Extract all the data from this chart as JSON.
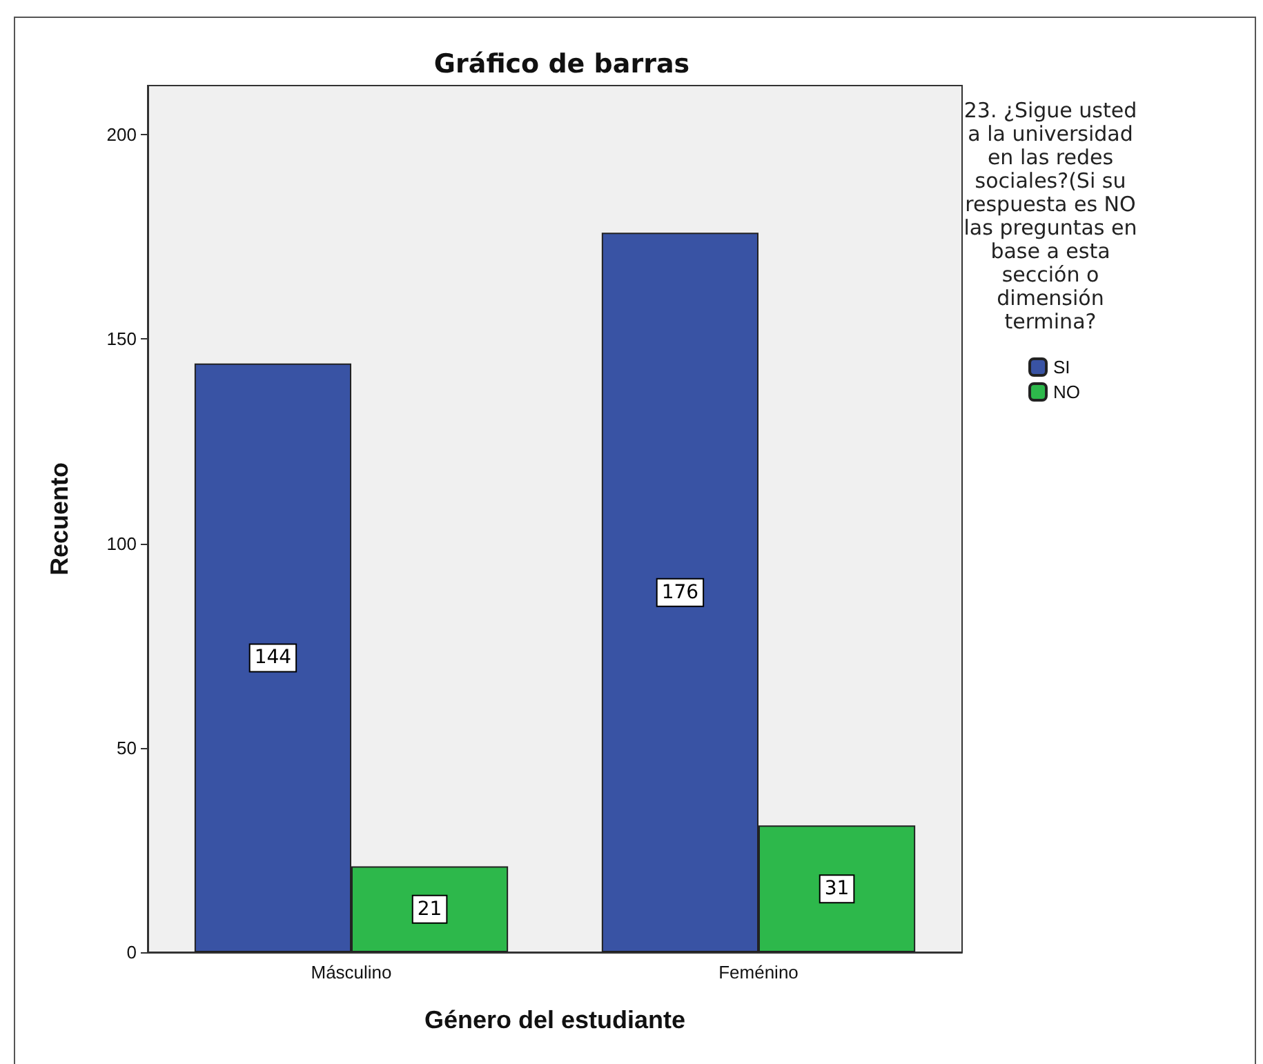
{
  "chart_data": {
    "type": "bar",
    "title": "Gráfico de barras",
    "xlabel": "Género del estudiante",
    "ylabel": "Recuento",
    "legend_title": "23. ¿Sigue usted a la universidad en las redes sociales?(Si su respuesta es NO las preguntas en base a esta sección o dimensión termina?",
    "categories": [
      "Másculino",
      "Feménino"
    ],
    "series": [
      {
        "name": "SI",
        "color": "#3953a4",
        "values": [
          144,
          176
        ]
      },
      {
        "name": "NO",
        "color": "#2db84b",
        "values": [
          21,
          31
        ]
      }
    ],
    "ylim": [
      0,
      212
    ],
    "yticks": [
      0,
      50,
      100,
      150,
      200
    ],
    "data_labels": true,
    "legend": "right"
  }
}
